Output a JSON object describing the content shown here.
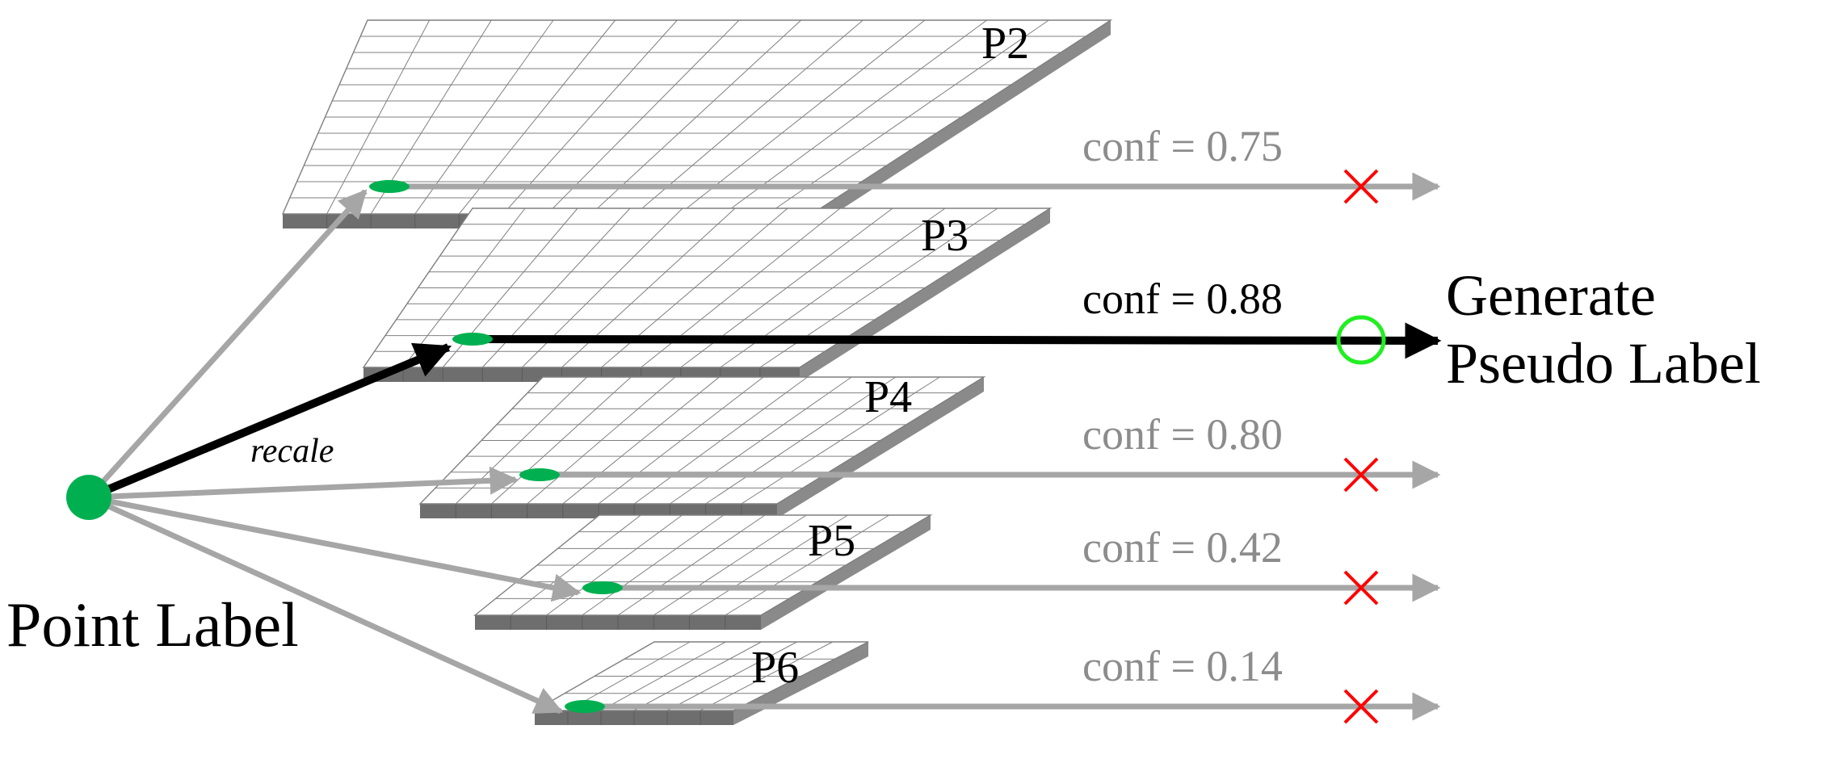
{
  "source": {
    "label": "Point Label",
    "color": "#00b050"
  },
  "rescale_label": "recale",
  "colors": {
    "active": "#000000",
    "inactive": "#a6a6a6",
    "conf_text_inactive": "#8c8c8c",
    "reject": "#ff0000",
    "accept": "#22ee22",
    "dot": "#00b050",
    "grid_line": "#7f7f7f",
    "slab_front": "#6e6e6e",
    "slab_side": "#8a8a8a"
  },
  "levels": [
    {
      "name": "P2",
      "conf": "conf = 0.75",
      "selected": false,
      "mark": "cross"
    },
    {
      "name": "P3",
      "conf": "conf = 0.88",
      "selected": true,
      "mark": "circle"
    },
    {
      "name": "P4",
      "conf": "conf = 0.80",
      "selected": false,
      "mark": "cross"
    },
    {
      "name": "P5",
      "conf": "conf = 0.42",
      "selected": false,
      "mark": "cross"
    },
    {
      "name": "P6",
      "conf": "conf = 0.14",
      "selected": false,
      "mark": "cross"
    }
  ],
  "output": {
    "line1": "Generate",
    "line2": "Pseudo Label"
  }
}
